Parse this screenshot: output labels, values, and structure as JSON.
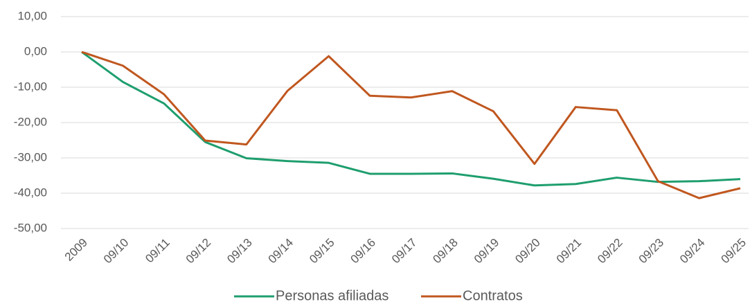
{
  "chart_data": {
    "type": "line",
    "categories": [
      "2009",
      "09/10",
      "09/11",
      "09/12",
      "09/13",
      "09/14",
      "09/15",
      "09/16",
      "09/17",
      "09/18",
      "09/19",
      "09/20",
      "09/21",
      "09/22",
      "09/23",
      "09/24",
      "09/25"
    ],
    "series": [
      {
        "name": "Personas afiliadas",
        "color": "#1e9e6e",
        "values": [
          0,
          -8.5,
          -14.6,
          -25.5,
          -30.1,
          -30.9,
          -31.4,
          -34.5,
          -34.5,
          -34.4,
          -35.9,
          -37.8,
          -37.4,
          -35.6,
          -36.8,
          -36.6,
          -36.0
        ]
      },
      {
        "name": "Contratos",
        "color": "#c0571f",
        "values": [
          0,
          -3.9,
          -12.0,
          -25.1,
          -26.2,
          -11.0,
          -1.2,
          -12.4,
          -12.9,
          -11.1,
          -16.8,
          -31.7,
          -15.6,
          -16.5,
          -36.6,
          -41.4,
          -38.6
        ]
      }
    ],
    "ylim": [
      -50,
      10
    ],
    "yticks": [
      {
        "value": 10,
        "label": "10,00"
      },
      {
        "value": 0,
        "label": "0,00"
      },
      {
        "value": -10,
        "label": "-10,00"
      },
      {
        "value": -20,
        "label": "-20,00"
      },
      {
        "value": -30,
        "label": "-30,00"
      },
      {
        "value": -40,
        "label": "-40,00"
      },
      {
        "value": -50,
        "label": "-50,00"
      }
    ],
    "grid": true,
    "legend": "bottom"
  }
}
